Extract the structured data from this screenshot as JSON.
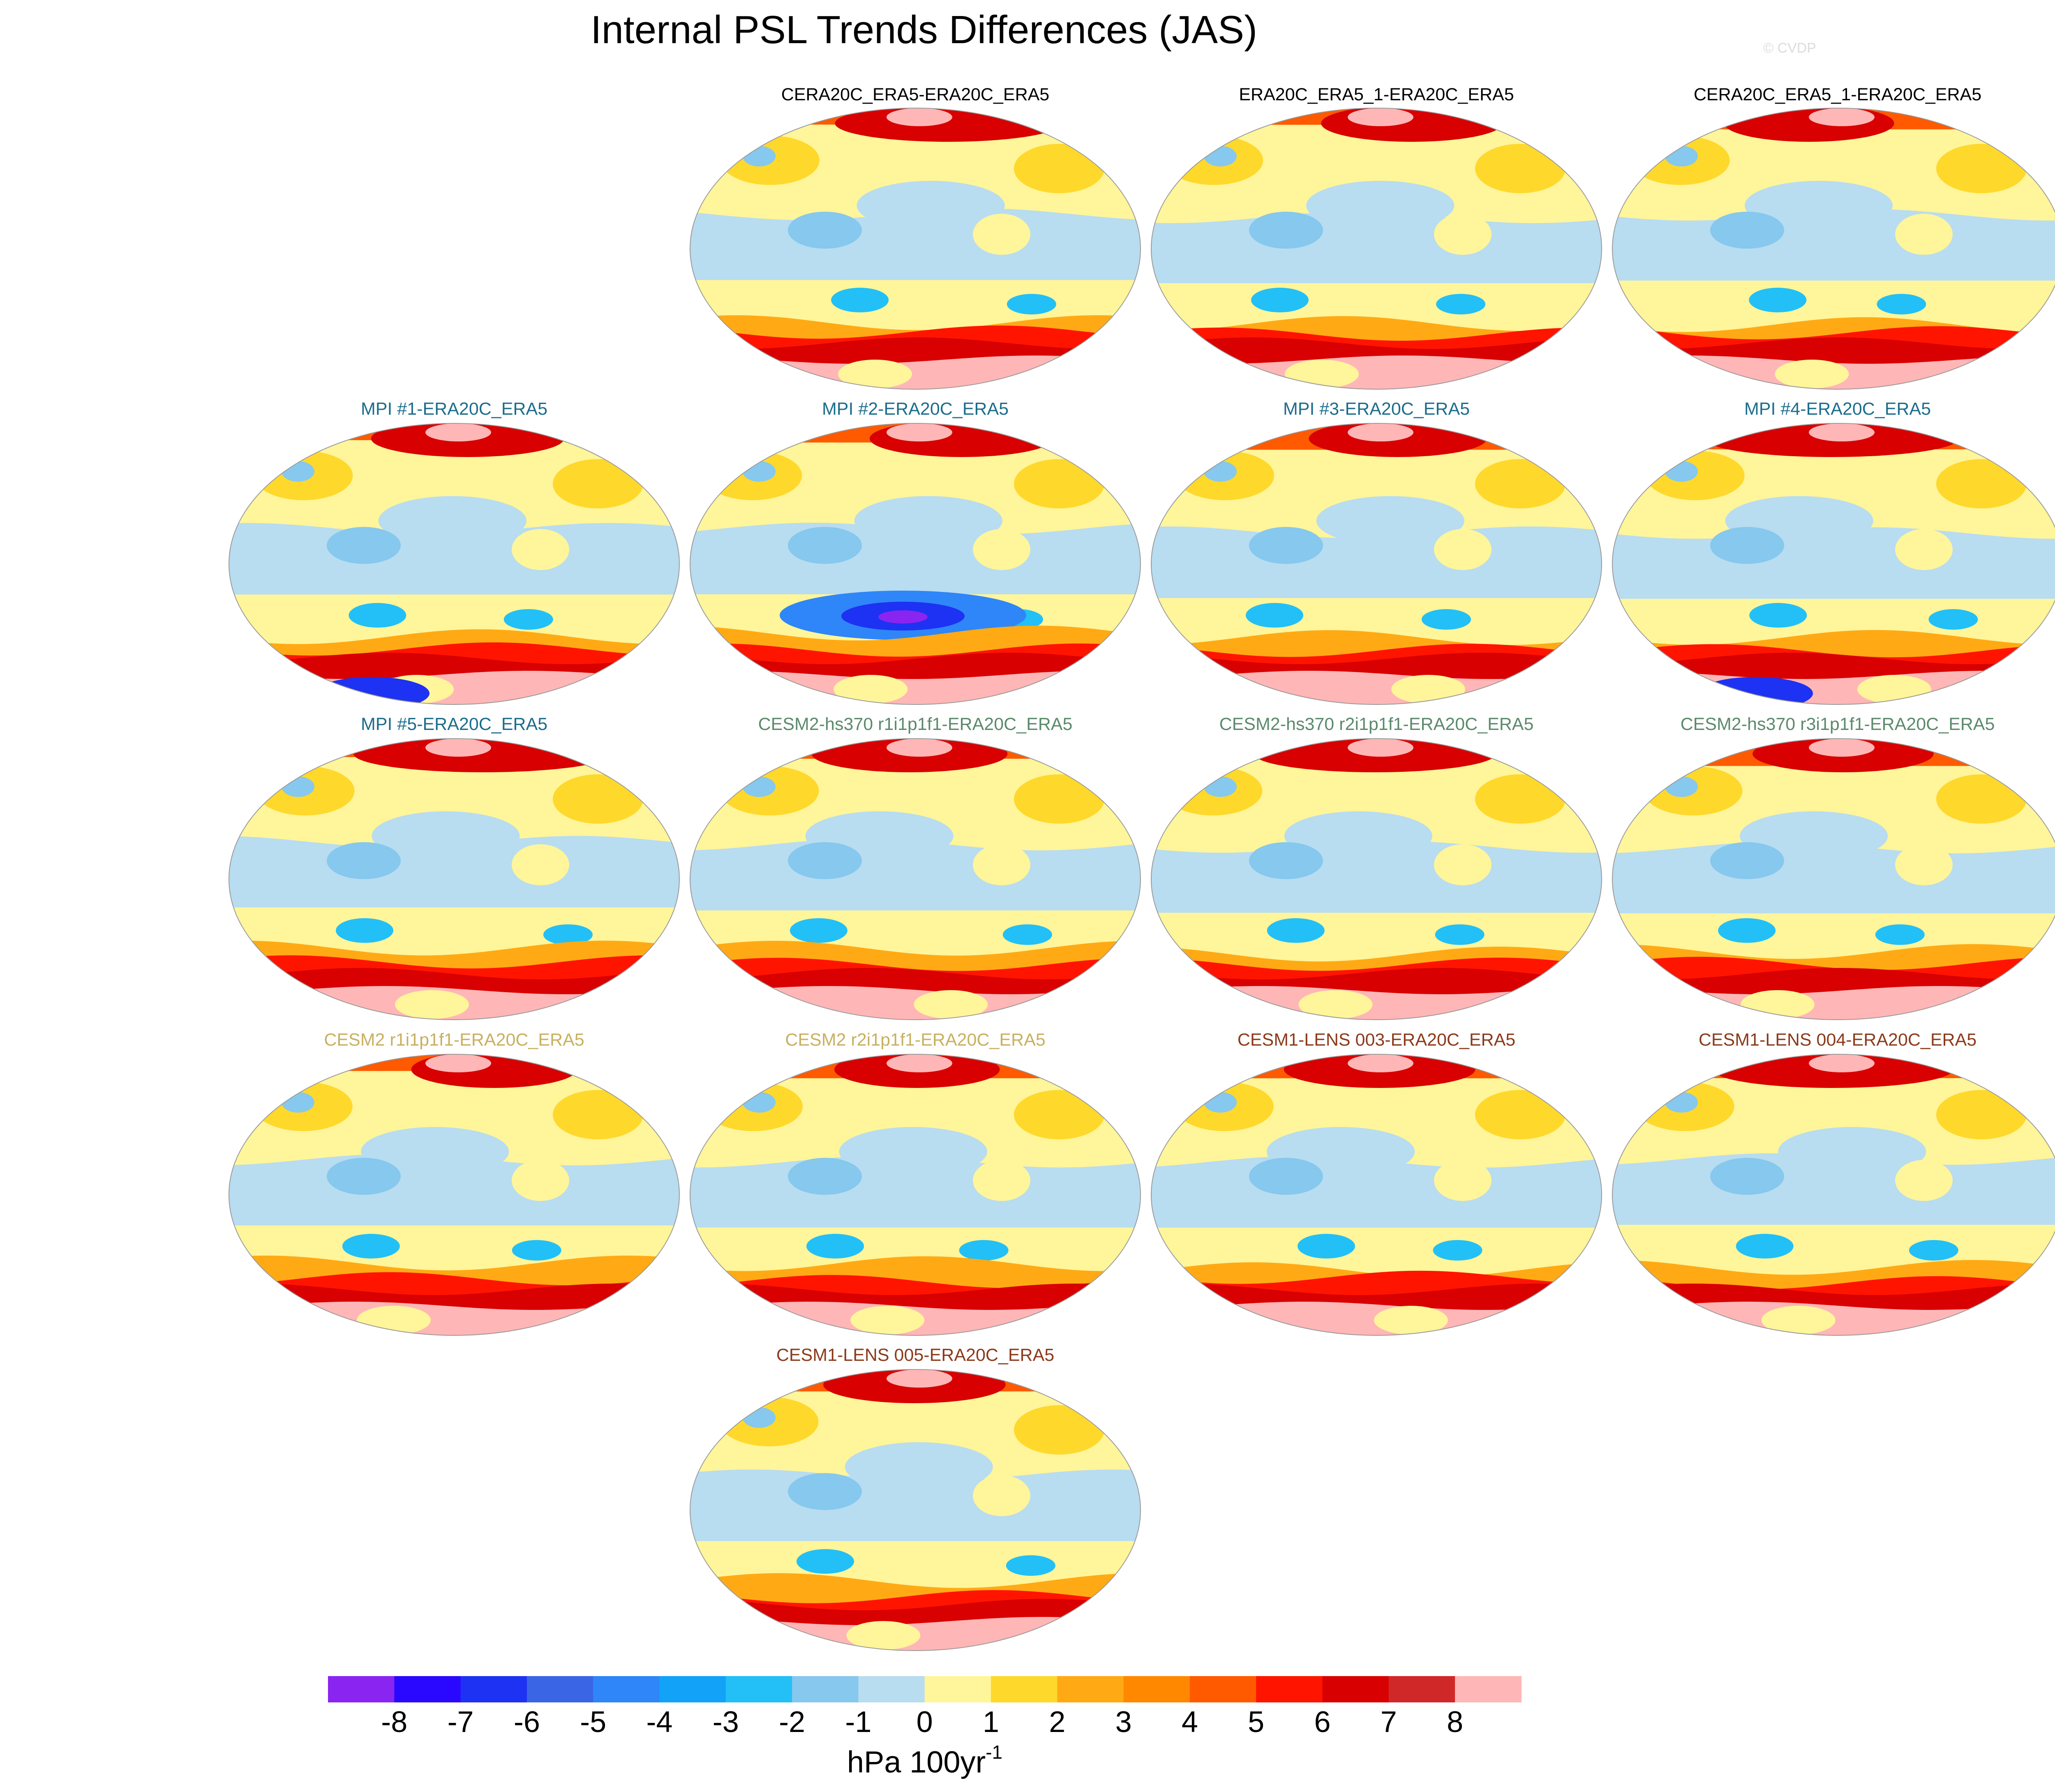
{
  "title": "Internal PSL Trends Differences (JAS)",
  "credit": "© CVDP",
  "colors": {
    "obs_title": "#000000",
    "mpi_title": "#1b6d8c",
    "cesm2hs_title": "#5b8a6b",
    "cesm2_title": "#c8b060",
    "cesm1_title": "#8b3a1a"
  },
  "chart_data": {
    "type": "heatmap",
    "projection": "Robinson (global, Pacific-centered)",
    "panels": [
      {
        "name": "CERA20C_ERA5-ERA20C_ERA5",
        "group": "obs"
      },
      {
        "name": "ERA20C_ERA5_1-ERA20C_ERA5",
        "group": "obs"
      },
      {
        "name": "CERA20C_ERA5_1-ERA20C_ERA5",
        "group": "obs"
      },
      {
        "name": "MPI #1-ERA20C_ERA5",
        "group": "mpi"
      },
      {
        "name": "MPI #2-ERA20C_ERA5",
        "group": "mpi"
      },
      {
        "name": "MPI #3-ERA20C_ERA5",
        "group": "mpi"
      },
      {
        "name": "MPI #4-ERA20C_ERA5",
        "group": "mpi"
      },
      {
        "name": "MPI #5-ERA20C_ERA5",
        "group": "mpi"
      },
      {
        "name": "CESM2-hs370 r1i1p1f1-ERA20C_ERA5",
        "group": "cesm2hs"
      },
      {
        "name": "CESM2-hs370 r2i1p1f1-ERA20C_ERA5",
        "group": "cesm2hs"
      },
      {
        "name": "CESM2-hs370 r3i1p1f1-ERA20C_ERA5",
        "group": "cesm2hs"
      },
      {
        "name": "CESM2 r1i1p1f1-ERA20C_ERA5",
        "group": "cesm2"
      },
      {
        "name": "CESM2 r2i1p1f1-ERA20C_ERA5",
        "group": "cesm2"
      },
      {
        "name": "CESM1-LENS 003-ERA20C_ERA5",
        "group": "cesm1"
      },
      {
        "name": "CESM1-LENS 004-ERA20C_ERA5",
        "group": "cesm1"
      },
      {
        "name": "CESM1-LENS 005-ERA20C_ERA5",
        "group": "cesm1"
      }
    ],
    "colorbar": {
      "levels": [
        "-8",
        "-7",
        "-6",
        "-5",
        "-4",
        "-3",
        "-2",
        "-1",
        "0",
        "1",
        "2",
        "3",
        "4",
        "5",
        "6",
        "7",
        "8"
      ],
      "colors": [
        "#8a24f0",
        "#2a08ff",
        "#1d32f2",
        "#3a66e6",
        "#2e86f8",
        "#12a2f8",
        "#22c0f6",
        "#86c8ee",
        "#b8dcf0",
        "#fff59a",
        "#ffd82c",
        "#ffaa14",
        "#ff8800",
        "#ff5a00",
        "#ff1400",
        "#d80000",
        "#d02828",
        "#ffb6b6"
      ],
      "units": "hPa 100yr",
      "units_exp": "-1"
    }
  }
}
